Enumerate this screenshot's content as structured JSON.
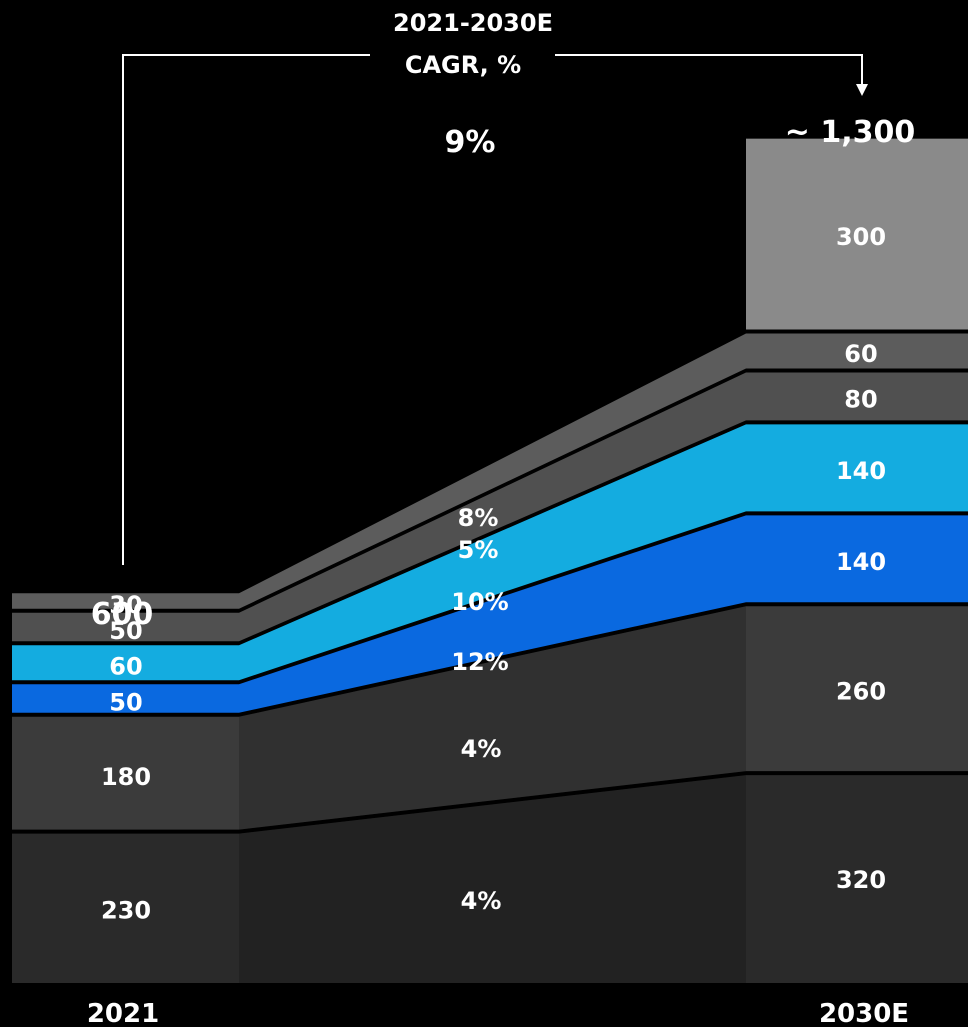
{
  "chart_data": {
    "type": "area",
    "title_line1": "2021-2030E",
    "title_line2": "CAGR, %",
    "categories": [
      "2021",
      "2030E"
    ],
    "totals": [
      "600",
      "~ 1,300"
    ],
    "total_cagr": "9%",
    "series": [
      {
        "values": [
          230,
          320
        ],
        "labels": [
          "230",
          "320"
        ],
        "cagr": "4%",
        "color": "#2a2a2a"
      },
      {
        "values": [
          180,
          260
        ],
        "labels": [
          "180",
          "260"
        ],
        "cagr": "4%",
        "color": "#3b3b3b"
      },
      {
        "values": [
          50,
          140
        ],
        "labels": [
          "50",
          "140"
        ],
        "cagr": "12%",
        "color": "#0a69e0"
      },
      {
        "values": [
          60,
          140
        ],
        "labels": [
          "60",
          "140"
        ],
        "cagr": "10%",
        "color": "#14ace0"
      },
      {
        "values": [
          50,
          80
        ],
        "labels": [
          "50",
          "80"
        ],
        "cagr": "5%",
        "color": "#505050"
      },
      {
        "values": [
          30,
          60
        ],
        "labels": [
          "30",
          "60"
        ],
        "cagr": "8%",
        "color": "#5c5c5c"
      },
      {
        "values": [
          0,
          300
        ],
        "labels": [
          "",
          "300"
        ],
        "cagr": "",
        "color": "#8a8a8a"
      }
    ]
  }
}
